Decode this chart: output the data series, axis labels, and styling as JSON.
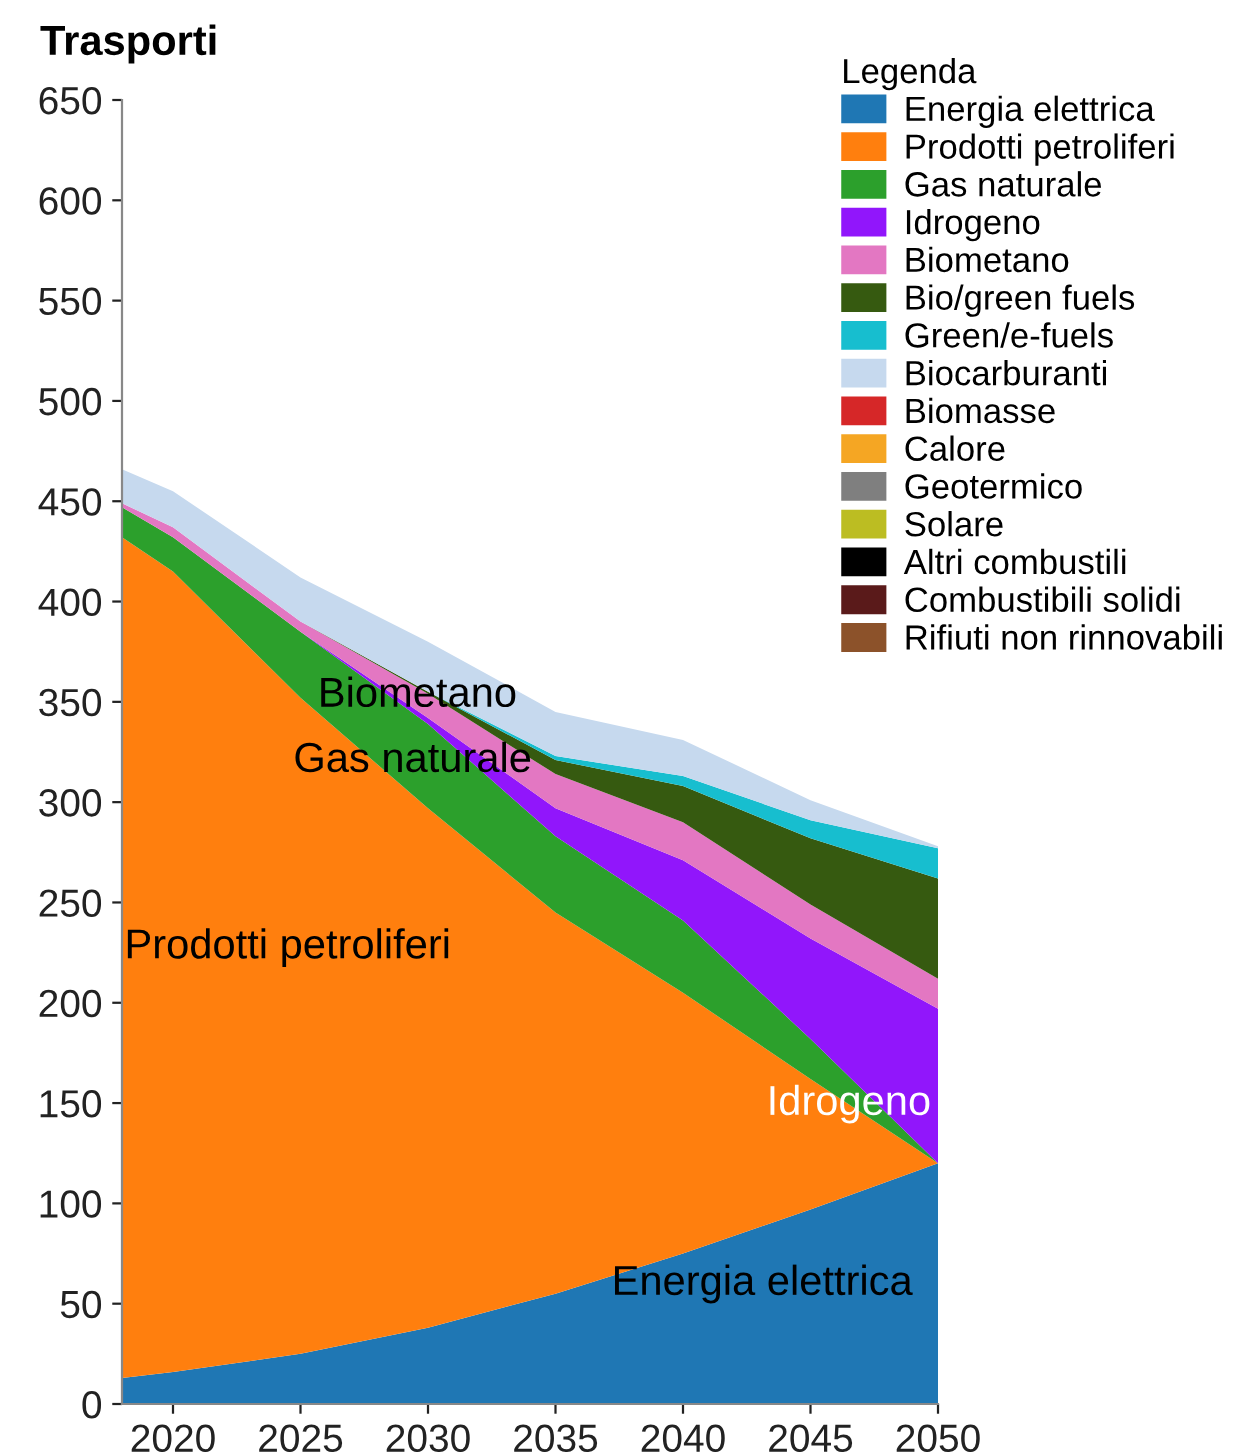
{
  "chart_data": {
    "type": "area",
    "stacked": true,
    "title": "Trasporti",
    "legend_title": "Legenda",
    "legend": "top right",
    "grid": false,
    "x": [
      2018,
      2020,
      2025,
      2030,
      2035,
      2040,
      2045,
      2050
    ],
    "xlim": [
      2018,
      2050
    ],
    "xticks": [
      2020,
      2025,
      2030,
      2035,
      2040,
      2045,
      2050
    ],
    "ylim": [
      0,
      650
    ],
    "yticks": [
      0,
      50,
      100,
      150,
      200,
      250,
      300,
      350,
      400,
      450,
      500,
      550,
      600,
      650
    ],
    "series": [
      {
        "name": "Energia elettrica",
        "color": "#1f77b4",
        "values": [
          13,
          16,
          25,
          38,
          55,
          75,
          97,
          120
        ]
      },
      {
        "name": "Prodotti petroliferi",
        "color": "#ff7f0e",
        "values": [
          419,
          399,
          327,
          259,
          190,
          130,
          65,
          0
        ]
      },
      {
        "name": "Gas naturale",
        "color": "#2ca02c",
        "values": [
          15,
          17,
          33,
          42,
          38,
          36,
          20,
          0
        ]
      },
      {
        "name": "Idrogeno",
        "color": "#9116fb",
        "values": [
          null,
          null,
          0,
          3,
          14,
          30,
          50,
          77
        ]
      },
      {
        "name": "Biometano",
        "color": "#e377c2",
        "values": [
          2,
          5,
          5,
          12,
          17,
          19,
          17,
          15
        ]
      },
      {
        "name": "Bio/green fuels",
        "color": "#365a10",
        "values": [
          null,
          null,
          0,
          1,
          7,
          18,
          33,
          50
        ]
      },
      {
        "name": "Green/e-fuels",
        "color": "#17becf",
        "values": [
          null,
          null,
          null,
          0,
          2,
          5,
          9,
          15
        ]
      },
      {
        "name": "Biocarburanti",
        "color": "#c6d9ee",
        "values": [
          17,
          18,
          22,
          25,
          22,
          18,
          10,
          1
        ]
      },
      {
        "name": "Biomasse",
        "color": "#d62728",
        "values": [
          null,
          null,
          null,
          null,
          null,
          null,
          null,
          null
        ]
      },
      {
        "name": "Calore",
        "color": "#f5a623",
        "values": [
          null,
          null,
          null,
          null,
          null,
          null,
          null,
          null
        ]
      },
      {
        "name": "Geotermico",
        "color": "#7f7f7f",
        "values": [
          null,
          null,
          null,
          null,
          null,
          null,
          null,
          null
        ]
      },
      {
        "name": "Solare",
        "color": "#bcbd22",
        "values": [
          null,
          null,
          null,
          null,
          null,
          null,
          null,
          null
        ]
      },
      {
        "name": "Altri combustili",
        "color": "#000000",
        "values": [
          null,
          null,
          null,
          null,
          null,
          null,
          null,
          null
        ]
      },
      {
        "name": "Combustibili solidi",
        "color": "#5a1a1a",
        "values": [
          null,
          null,
          null,
          null,
          null,
          null,
          null,
          null
        ]
      },
      {
        "name": "Rifiuti non rinnovabili",
        "color": "#8c522a",
        "values": [
          null,
          null,
          null,
          null,
          null,
          null,
          null,
          null
        ]
      }
    ],
    "annotations": [
      "Biometano",
      "Gas naturale",
      "Prodotti petroliferi",
      "Idrogeno",
      "Energia elettrica"
    ]
  }
}
